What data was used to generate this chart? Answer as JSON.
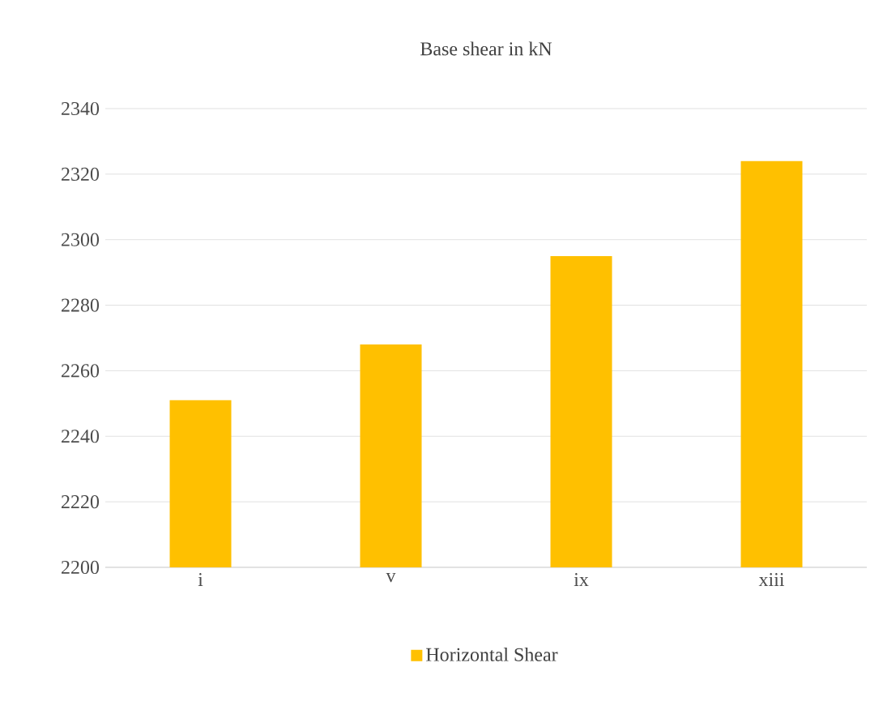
{
  "chart_data": {
    "type": "bar",
    "title": "Base shear in kN",
    "categories": [
      "i",
      "v",
      "ix",
      "xiii"
    ],
    "series": [
      {
        "name": "Horizontal Shear",
        "color": "#ffc000",
        "values": [
          2251,
          2268,
          2295,
          2324
        ]
      }
    ],
    "ylim": [
      2200,
      2340
    ],
    "yticks": [
      2200,
      2220,
      2240,
      2260,
      2280,
      2300,
      2320,
      2340
    ],
    "grid": "y",
    "legend": "bottom"
  }
}
